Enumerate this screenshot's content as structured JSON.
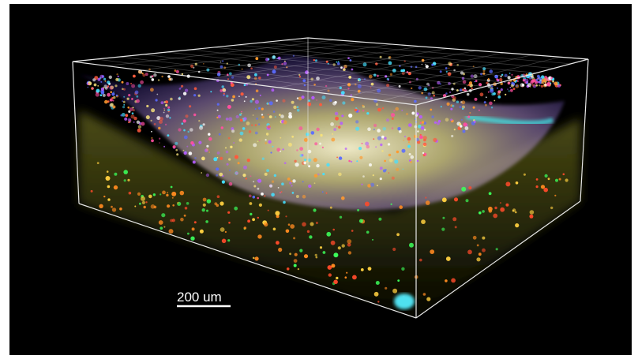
{
  "scale_bar": {
    "label": "200 um"
  }
}
